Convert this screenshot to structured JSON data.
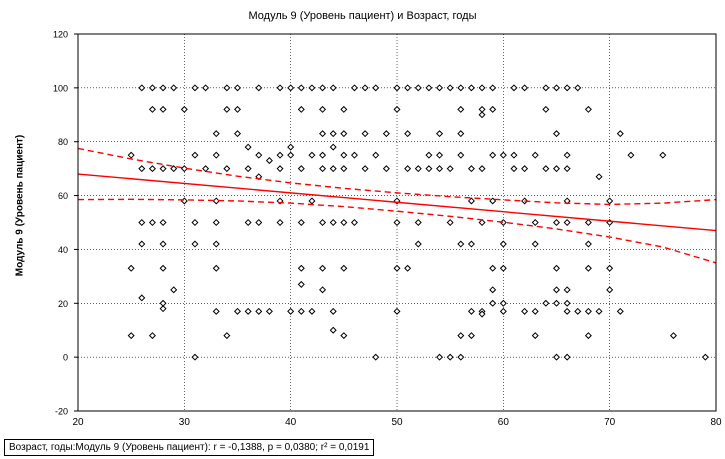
{
  "chart_data": {
    "type": "scatter",
    "title": "Модуль 9 (Уровень пациент) и Возраст, годы",
    "xlabel": "",
    "ylabel": "Модуль 9 (Уровень пациент)",
    "xlim": [
      20,
      80
    ],
    "ylim": [
      -20,
      120
    ],
    "xticks": [
      20,
      30,
      40,
      50,
      60,
      70,
      80
    ],
    "yticks": [
      -20,
      0,
      20,
      40,
      60,
      80,
      100,
      120
    ],
    "grid": true,
    "points": [
      [
        26,
        100
      ],
      [
        27,
        100
      ],
      [
        28,
        100
      ],
      [
        29,
        100
      ],
      [
        31,
        100
      ],
      [
        32,
        100
      ],
      [
        34,
        100
      ],
      [
        35,
        100
      ],
      [
        37,
        100
      ],
      [
        39,
        100
      ],
      [
        40,
        100
      ],
      [
        41,
        100
      ],
      [
        42,
        100
      ],
      [
        43,
        100
      ],
      [
        44,
        100
      ],
      [
        46,
        100
      ],
      [
        47,
        100
      ],
      [
        48,
        100
      ],
      [
        50,
        100
      ],
      [
        51,
        100
      ],
      [
        52,
        100
      ],
      [
        53,
        100
      ],
      [
        54,
        100
      ],
      [
        55,
        100
      ],
      [
        56,
        100
      ],
      [
        57,
        100
      ],
      [
        58,
        100
      ],
      [
        59,
        100
      ],
      [
        61,
        100
      ],
      [
        62,
        100
      ],
      [
        64,
        100
      ],
      [
        65,
        100
      ],
      [
        66,
        100
      ],
      [
        67,
        100
      ],
      [
        27,
        92
      ],
      [
        28,
        92
      ],
      [
        30,
        92
      ],
      [
        34,
        92
      ],
      [
        35,
        92
      ],
      [
        41,
        92
      ],
      [
        43,
        92
      ],
      [
        45,
        92
      ],
      [
        50,
        92
      ],
      [
        56,
        92
      ],
      [
        58,
        92
      ],
      [
        59,
        92
      ],
      [
        64,
        92
      ],
      [
        68,
        92
      ],
      [
        58,
        90
      ],
      [
        33,
        83
      ],
      [
        35,
        83
      ],
      [
        43,
        83
      ],
      [
        44,
        83
      ],
      [
        45,
        83
      ],
      [
        47,
        83
      ],
      [
        49,
        83
      ],
      [
        51,
        83
      ],
      [
        54,
        83
      ],
      [
        56,
        83
      ],
      [
        65,
        83
      ],
      [
        71,
        83
      ],
      [
        36,
        78
      ],
      [
        40,
        78
      ],
      [
        44,
        78
      ],
      [
        25,
        75
      ],
      [
        31,
        75
      ],
      [
        33,
        75
      ],
      [
        37,
        75
      ],
      [
        39,
        75
      ],
      [
        40,
        75
      ],
      [
        42,
        75
      ],
      [
        43,
        75
      ],
      [
        45,
        75
      ],
      [
        46,
        75
      ],
      [
        48,
        75
      ],
      [
        53,
        75
      ],
      [
        54,
        75
      ],
      [
        56,
        75
      ],
      [
        59,
        75
      ],
      [
        60,
        75
      ],
      [
        61,
        75
      ],
      [
        63,
        75
      ],
      [
        66,
        75
      ],
      [
        72,
        75
      ],
      [
        75,
        75
      ],
      [
        38,
        73
      ],
      [
        26,
        70
      ],
      [
        27,
        70
      ],
      [
        28,
        70
      ],
      [
        29,
        70
      ],
      [
        30,
        70
      ],
      [
        32,
        70
      ],
      [
        34,
        70
      ],
      [
        36,
        70
      ],
      [
        39,
        70
      ],
      [
        41,
        70
      ],
      [
        43,
        70
      ],
      [
        44,
        70
      ],
      [
        45,
        70
      ],
      [
        47,
        70
      ],
      [
        49,
        70
      ],
      [
        51,
        70
      ],
      [
        52,
        70
      ],
      [
        53,
        70
      ],
      [
        54,
        70
      ],
      [
        55,
        70
      ],
      [
        57,
        70
      ],
      [
        58,
        70
      ],
      [
        61,
        70
      ],
      [
        62,
        70
      ],
      [
        64,
        70
      ],
      [
        65,
        70
      ],
      [
        66,
        70
      ],
      [
        37,
        67
      ],
      [
        69,
        67
      ],
      [
        30,
        58
      ],
      [
        33,
        58
      ],
      [
        39,
        58
      ],
      [
        42,
        58
      ],
      [
        50,
        58
      ],
      [
        57,
        58
      ],
      [
        59,
        58
      ],
      [
        62,
        58
      ],
      [
        66,
        58
      ],
      [
        70,
        58
      ],
      [
        26,
        50
      ],
      [
        27,
        50
      ],
      [
        28,
        50
      ],
      [
        31,
        50
      ],
      [
        33,
        50
      ],
      [
        36,
        50
      ],
      [
        37,
        50
      ],
      [
        39,
        50
      ],
      [
        41,
        50
      ],
      [
        43,
        50
      ],
      [
        44,
        50
      ],
      [
        45,
        50
      ],
      [
        46,
        50
      ],
      [
        50,
        50
      ],
      [
        52,
        50
      ],
      [
        55,
        50
      ],
      [
        58,
        50
      ],
      [
        60,
        50
      ],
      [
        63,
        50
      ],
      [
        65,
        50
      ],
      [
        66,
        50
      ],
      [
        68,
        50
      ],
      [
        70,
        50
      ],
      [
        26,
        42
      ],
      [
        28,
        42
      ],
      [
        31,
        42
      ],
      [
        33,
        42
      ],
      [
        52,
        42
      ],
      [
        56,
        42
      ],
      [
        57,
        42
      ],
      [
        60,
        42
      ],
      [
        63,
        42
      ],
      [
        68,
        42
      ],
      [
        25,
        33
      ],
      [
        28,
        33
      ],
      [
        33,
        33
      ],
      [
        41,
        33
      ],
      [
        43,
        33
      ],
      [
        45,
        33
      ],
      [
        50,
        33
      ],
      [
        51,
        33
      ],
      [
        59,
        33
      ],
      [
        60,
        33
      ],
      [
        65,
        33
      ],
      [
        68,
        33
      ],
      [
        70,
        33
      ],
      [
        41,
        27
      ],
      [
        43,
        25
      ],
      [
        29,
        25
      ],
      [
        59,
        25
      ],
      [
        65,
        25
      ],
      [
        66,
        25
      ],
      [
        70,
        25
      ],
      [
        26,
        22
      ],
      [
        28,
        20
      ],
      [
        28,
        18
      ],
      [
        59,
        20
      ],
      [
        60,
        20
      ],
      [
        64,
        20
      ],
      [
        65,
        20
      ],
      [
        66,
        20
      ],
      [
        33,
        17
      ],
      [
        35,
        17
      ],
      [
        36,
        17
      ],
      [
        37,
        17
      ],
      [
        38,
        17
      ],
      [
        40,
        17
      ],
      [
        41,
        17
      ],
      [
        42,
        17
      ],
      [
        44,
        17
      ],
      [
        50,
        17
      ],
      [
        57,
        17
      ],
      [
        58,
        17
      ],
      [
        60,
        17
      ],
      [
        62,
        17
      ],
      [
        63,
        17
      ],
      [
        66,
        17
      ],
      [
        67,
        17
      ],
      [
        68,
        17
      ],
      [
        69,
        17
      ],
      [
        71,
        17
      ],
      [
        58,
        16
      ],
      [
        44,
        10
      ],
      [
        45,
        8
      ],
      [
        25,
        8
      ],
      [
        27,
        8
      ],
      [
        34,
        8
      ],
      [
        56,
        8
      ],
      [
        57,
        8
      ],
      [
        63,
        8
      ],
      [
        68,
        8
      ],
      [
        76,
        8
      ],
      [
        31,
        0
      ],
      [
        48,
        0
      ],
      [
        54,
        0
      ],
      [
        55,
        0
      ],
      [
        56,
        0
      ],
      [
        65,
        0
      ],
      [
        66,
        0
      ],
      [
        79,
        0
      ]
    ],
    "fit_line": {
      "x": [
        20,
        80
      ],
      "y": [
        68,
        47
      ]
    },
    "ci_lower": {
      "x": [
        20,
        25,
        30,
        35,
        40,
        45,
        50,
        55,
        60,
        65,
        70,
        75,
        80
      ],
      "y": [
        58.5,
        58.6,
        58.4,
        58.0,
        57.2,
        55.9,
        54.2,
        52.3,
        50.1,
        47.6,
        44.6,
        40.9,
        35.0
      ]
    },
    "ci_upper": {
      "x": [
        20,
        25,
        30,
        35,
        40,
        45,
        50,
        55,
        60,
        65,
        70,
        75,
        80
      ],
      "y": [
        77.5,
        73.6,
        70.2,
        67.2,
        64.7,
        62.7,
        61.0,
        59.6,
        58.4,
        57.3,
        56.7,
        57.2,
        58.5
      ]
    },
    "caption": "Возраст, годы:Модуль 9 (Уровень пациент):   r = -0,1388, p = 0,0380; r² = 0,0191",
    "colors": {
      "points": "#000000",
      "fit": "#ff0000",
      "grid": "#000000"
    }
  }
}
